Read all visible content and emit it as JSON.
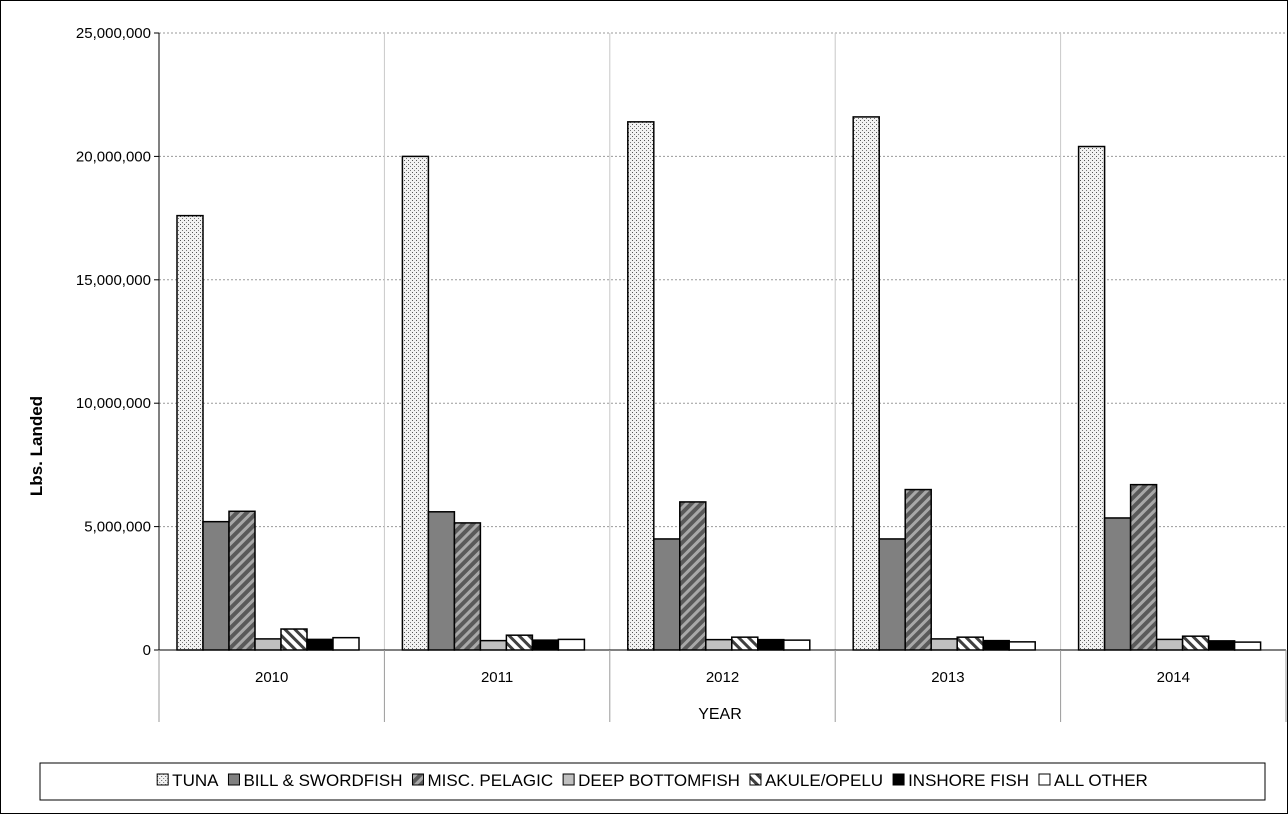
{
  "chart_data": {
    "type": "bar",
    "title": "",
    "xlabel": "YEAR",
    "ylabel": "Lbs. Landed",
    "ylim": [
      0,
      25000000
    ],
    "yticks": [
      "0",
      "5,000,000",
      "10,000,000",
      "15,000,000",
      "20,000,000",
      "25,000,000"
    ],
    "ytick_values": [
      0,
      5000000,
      10000000,
      15000000,
      20000000,
      25000000
    ],
    "grid": true,
    "legend_position": "bottom",
    "categories": [
      "2010",
      "2011",
      "2012",
      "2013",
      "2014"
    ],
    "series": [
      {
        "name": "TUNA",
        "pattern": "dots",
        "color": "#e6e6e6",
        "values": [
          17600000,
          20000000,
          21400000,
          21600000,
          20400000
        ]
      },
      {
        "name": "BILL & SWORDFISH",
        "pattern": "solid",
        "color": "#808080",
        "values": [
          5200000,
          5600000,
          4500000,
          4500000,
          5350000
        ]
      },
      {
        "name": "MISC. PELAGIC",
        "pattern": "diag-dark",
        "color": "#808080",
        "values": [
          5620000,
          5150000,
          6000000,
          6500000,
          6700000
        ]
      },
      {
        "name": "DEEP BOTTOMFISH",
        "pattern": "solid",
        "color": "#c0c0c0",
        "values": [
          450000,
          380000,
          420000,
          450000,
          430000
        ]
      },
      {
        "name": "AKULE/OPELU",
        "pattern": "diag-light",
        "color": "#ffffff",
        "values": [
          850000,
          600000,
          520000,
          520000,
          560000
        ]
      },
      {
        "name": "INSHORE FISH",
        "pattern": "solid",
        "color": "#000000",
        "values": [
          430000,
          400000,
          420000,
          380000,
          370000
        ]
      },
      {
        "name": "ALL OTHER",
        "pattern": "solid",
        "color": "#ffffff",
        "values": [
          500000,
          430000,
          400000,
          330000,
          320000
        ]
      }
    ]
  }
}
